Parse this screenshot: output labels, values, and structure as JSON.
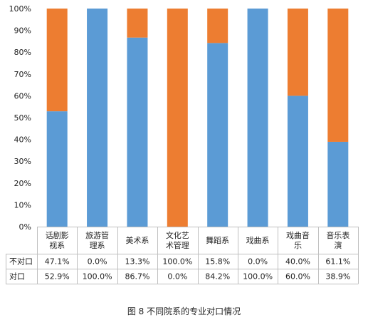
{
  "chart_data": {
    "type": "bar",
    "stacked": true,
    "categories": [
      [
        "话剧影",
        "视系"
      ],
      [
        "旅游管",
        "理系"
      ],
      [
        "美术系"
      ],
      [
        "文化艺",
        "术管理"
      ],
      [
        "舞蹈系"
      ],
      [
        "戏曲系"
      ],
      [
        "戏曲音",
        "乐"
      ],
      [
        "音乐表",
        "演"
      ]
    ],
    "series": [
      {
        "name": "对口",
        "color": "#5b9bd5",
        "values": [
          52.9,
          100.0,
          86.7,
          0.0,
          84.2,
          100.0,
          60.0,
          38.9
        ],
        "labels": [
          "52.9%",
          "100.0%",
          "86.7%",
          "0.0%",
          "84.2%",
          "100.0%",
          "60.0%",
          "38.9%"
        ]
      },
      {
        "name": "不对口",
        "color": "#ed7d31",
        "values": [
          47.1,
          0.0,
          13.3,
          100.0,
          15.8,
          0.0,
          40.0,
          61.1
        ],
        "labels": [
          "47.1%",
          "0.0%",
          "13.3%",
          "100.0%",
          "15.8%",
          "0.0%",
          "40.0%",
          "61.1%"
        ]
      }
    ],
    "table_rows": [
      {
        "label": "不对口",
        "series": 1
      },
      {
        "label": "对口",
        "series": 0
      }
    ],
    "ylim": [
      0,
      100
    ],
    "yticks": [
      "0%",
      "10%",
      "20%",
      "30%",
      "40%",
      "50%",
      "60%",
      "70%",
      "80%",
      "90%",
      "100%"
    ],
    "grid": false,
    "legend": "data-table",
    "caption": "图 8  不同院系的专业对口情况"
  }
}
